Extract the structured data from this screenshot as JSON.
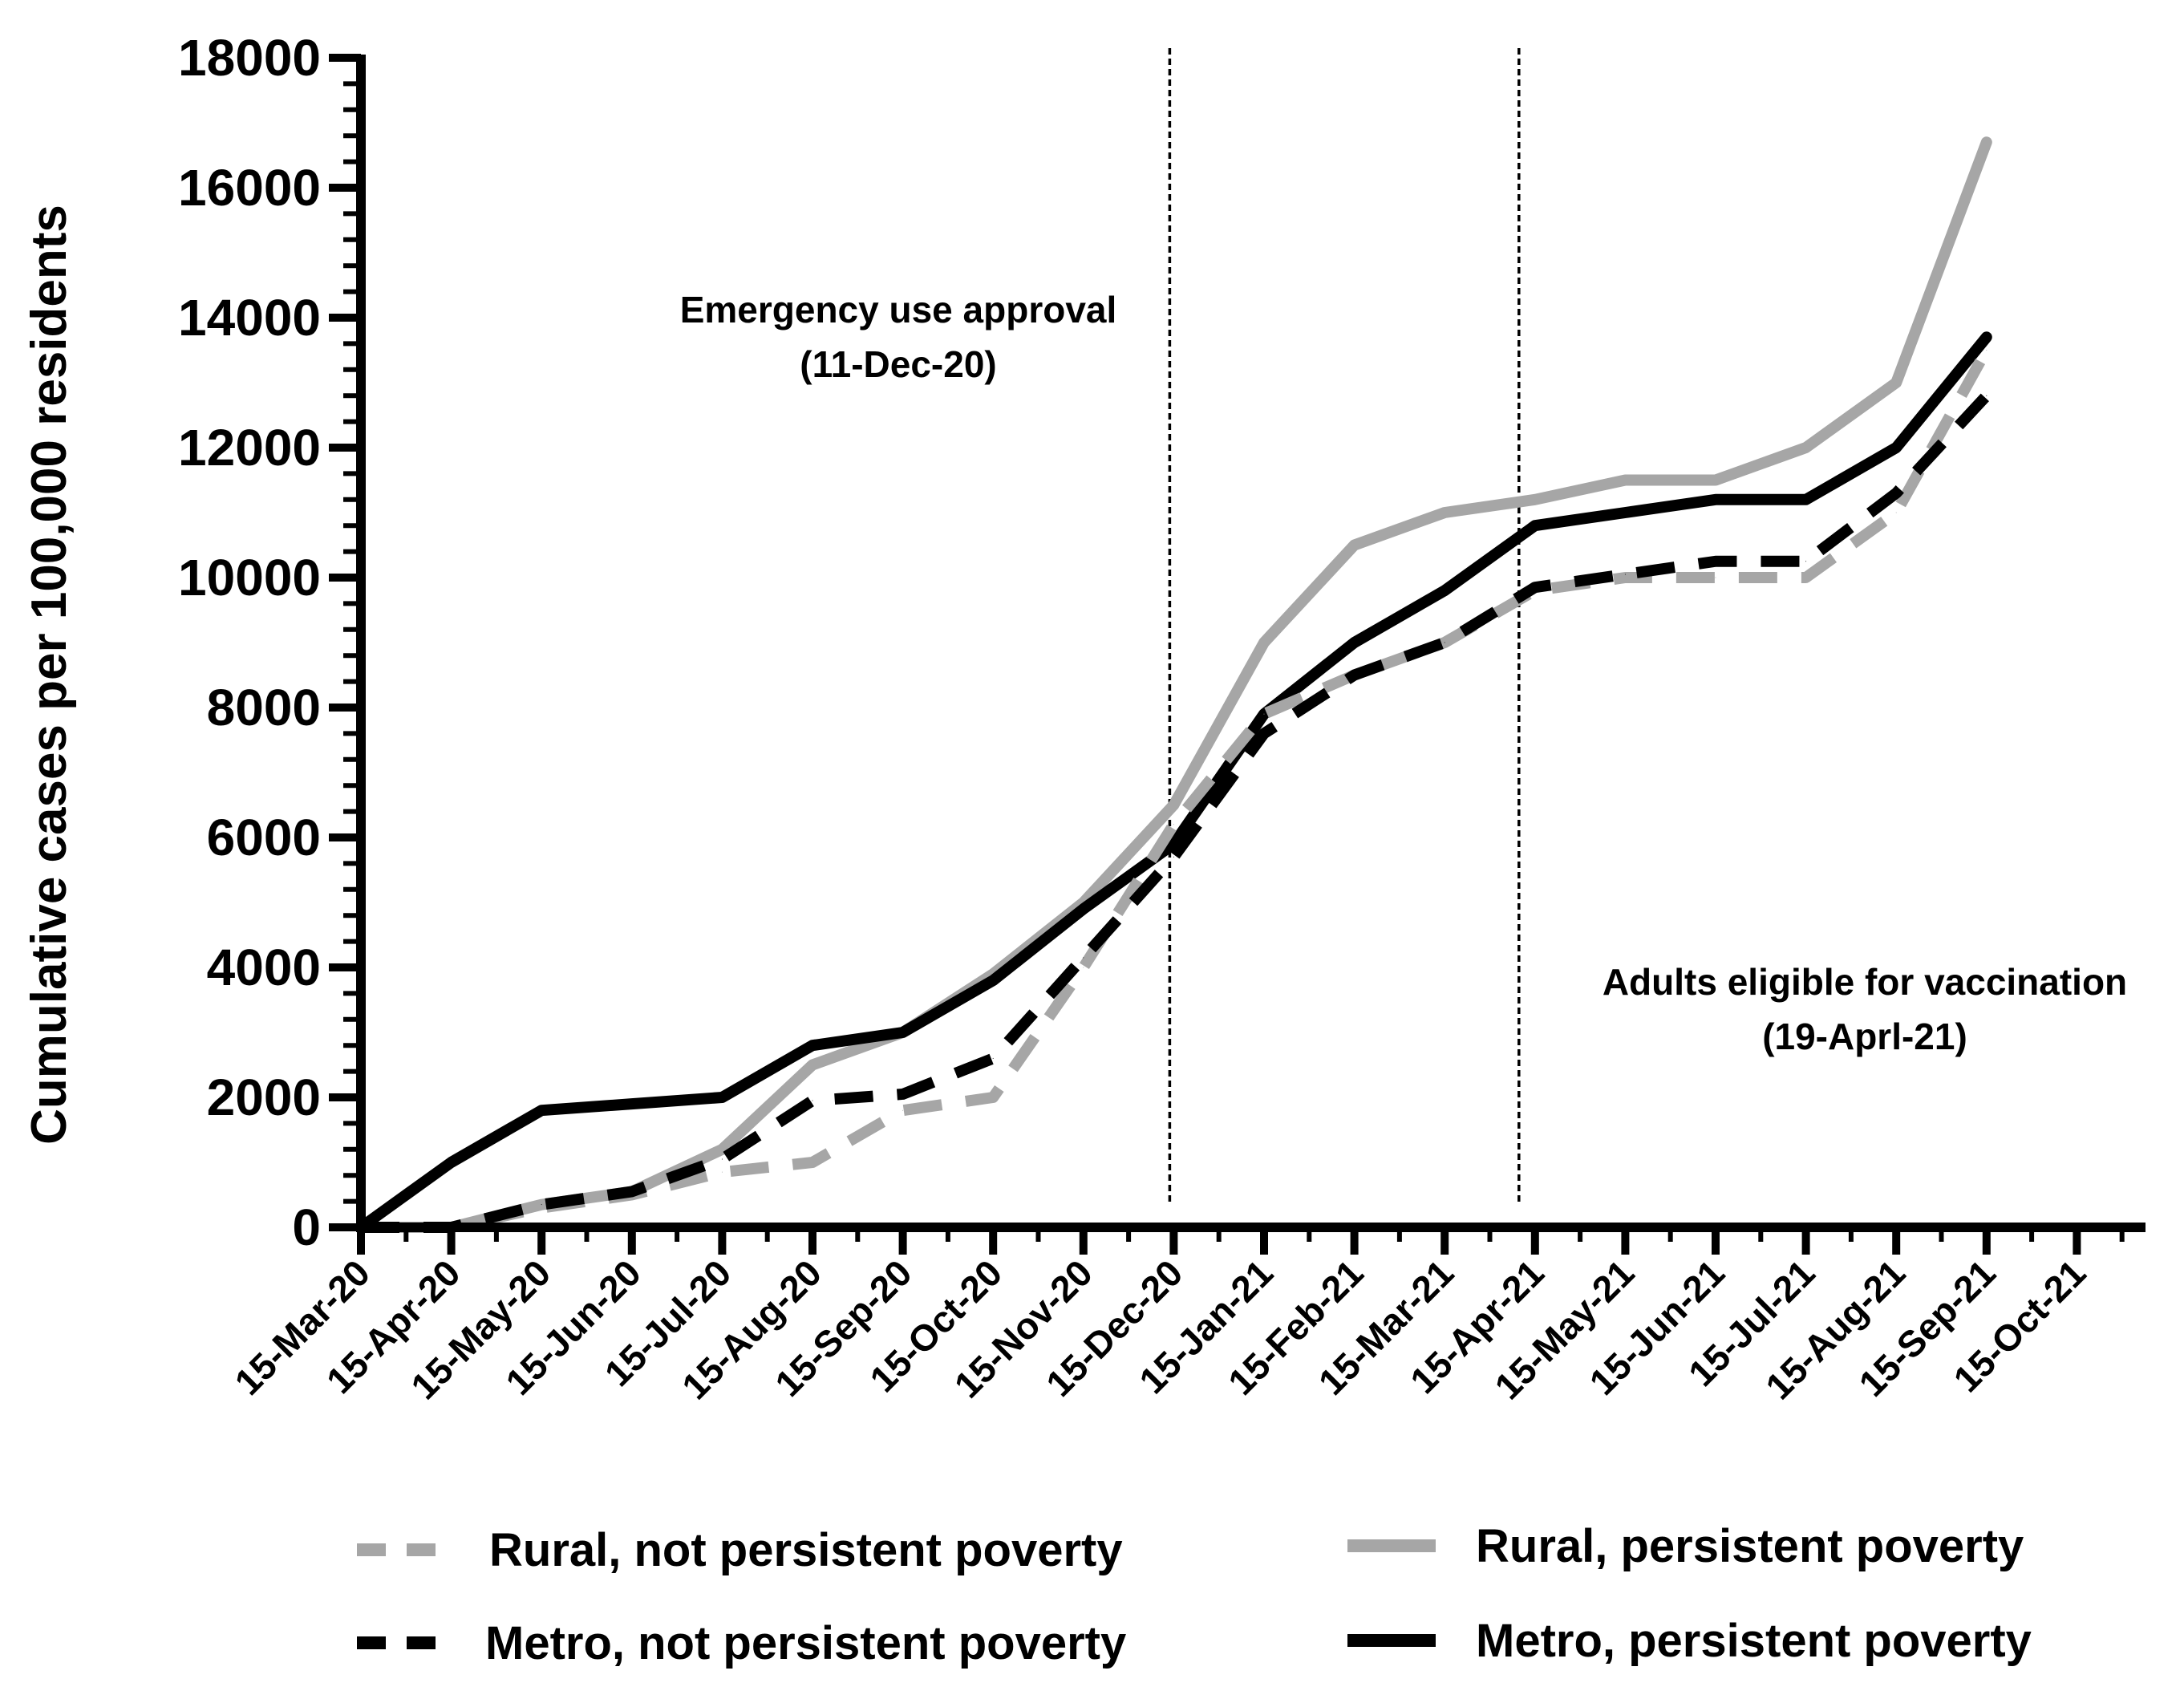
{
  "chart_data": {
    "type": "line",
    "ylabel": "Cumulative cases per 100,000 residents",
    "xlabel": "",
    "ylim": [
      0,
      18000
    ],
    "yticks": [
      0,
      2000,
      4000,
      6000,
      8000,
      10000,
      12000,
      14000,
      16000,
      18000
    ],
    "categories": [
      "15-Mar-20",
      "15-Apr-20",
      "15-May-20",
      "15-Jun-20",
      "15-Jul-20",
      "15-Aug-20",
      "15-Sep-20",
      "15-Oct-20",
      "15-Nov-20",
      "15-Dec-20",
      "15-Jan-21",
      "15-Feb-21",
      "15-Mar-21",
      "15-Apr-21",
      "15-May-21",
      "15-Jun-21",
      "15-Jul-21",
      "15-Aug-21",
      "15-Sep-21",
      "15-Oct-21"
    ],
    "series": [
      {
        "name": "Rural, not persistent poverty",
        "color": "#a6a6a6",
        "style": "dashed",
        "points": [
          [
            0,
            0
          ],
          [
            1,
            0
          ],
          [
            2,
            300
          ],
          [
            3,
            500
          ],
          [
            4,
            850
          ],
          [
            5,
            1000
          ],
          [
            6,
            1800
          ],
          [
            7,
            2000
          ],
          [
            8,
            4000
          ],
          [
            9,
            6200
          ],
          [
            10,
            7900
          ],
          [
            11,
            8500
          ],
          [
            12,
            9000
          ],
          [
            13,
            9800
          ],
          [
            14,
            10000
          ],
          [
            15,
            10000
          ],
          [
            16,
            10000
          ],
          [
            17,
            11000
          ],
          [
            18,
            13500
          ]
        ]
      },
      {
        "name": "Metro, not persistent poverty",
        "color": "#000000",
        "style": "dashed",
        "points": [
          [
            0,
            0
          ],
          [
            1,
            0
          ],
          [
            2,
            350
          ],
          [
            3,
            550
          ],
          [
            4,
            1050
          ],
          [
            5,
            1950
          ],
          [
            6,
            2050
          ],
          [
            7,
            2600
          ],
          [
            8,
            4150
          ],
          [
            9,
            5700
          ],
          [
            10,
            7600
          ],
          [
            11,
            8500
          ],
          [
            12,
            9000
          ],
          [
            13,
            9850
          ],
          [
            14,
            10050
          ],
          [
            15,
            10250
          ],
          [
            16,
            10250
          ],
          [
            17,
            11300
          ],
          [
            18,
            12800
          ]
        ]
      },
      {
        "name": "Rural, persistent poverty",
        "color": "#a6a6a6",
        "style": "solid",
        "points": [
          [
            0,
            0
          ],
          [
            1,
            0
          ],
          [
            2,
            350
          ],
          [
            3,
            550
          ],
          [
            4,
            1200
          ],
          [
            5,
            2500
          ],
          [
            6,
            3000
          ],
          [
            7,
            3900
          ],
          [
            8,
            5000
          ],
          [
            9,
            6500
          ],
          [
            10,
            9000
          ],
          [
            11,
            10500
          ],
          [
            12,
            11000
          ],
          [
            13,
            11200
          ],
          [
            14,
            11500
          ],
          [
            15,
            11500
          ],
          [
            16,
            12000
          ],
          [
            17,
            13000
          ],
          [
            18,
            16700
          ]
        ]
      },
      {
        "name": "Metro, persistent poverty",
        "color": "#000000",
        "style": "solid",
        "points": [
          [
            0,
            0
          ],
          [
            1,
            1000
          ],
          [
            2,
            1800
          ],
          [
            3,
            1900
          ],
          [
            4,
            2000
          ],
          [
            5,
            2800
          ],
          [
            6,
            3000
          ],
          [
            7,
            3800
          ],
          [
            8,
            4900
          ],
          [
            9,
            5900
          ],
          [
            10,
            7900
          ],
          [
            11,
            9000
          ],
          [
            12,
            9800
          ],
          [
            13,
            10800
          ],
          [
            14,
            11000
          ],
          [
            15,
            11200
          ],
          [
            16,
            11200
          ],
          [
            17,
            12000
          ],
          [
            18,
            13700
          ]
        ]
      }
    ],
    "annotations": [
      {
        "category": "15-Dec-20",
        "line1": "Emergency use approval",
        "line2": "(11-Dec-20)"
      },
      {
        "category": "15-Apr-21",
        "line1": "Adults eligible for vaccination",
        "line2": "(19-Aprl-21)"
      }
    ],
    "legend": {
      "position": "bottom",
      "columns": 2
    }
  }
}
